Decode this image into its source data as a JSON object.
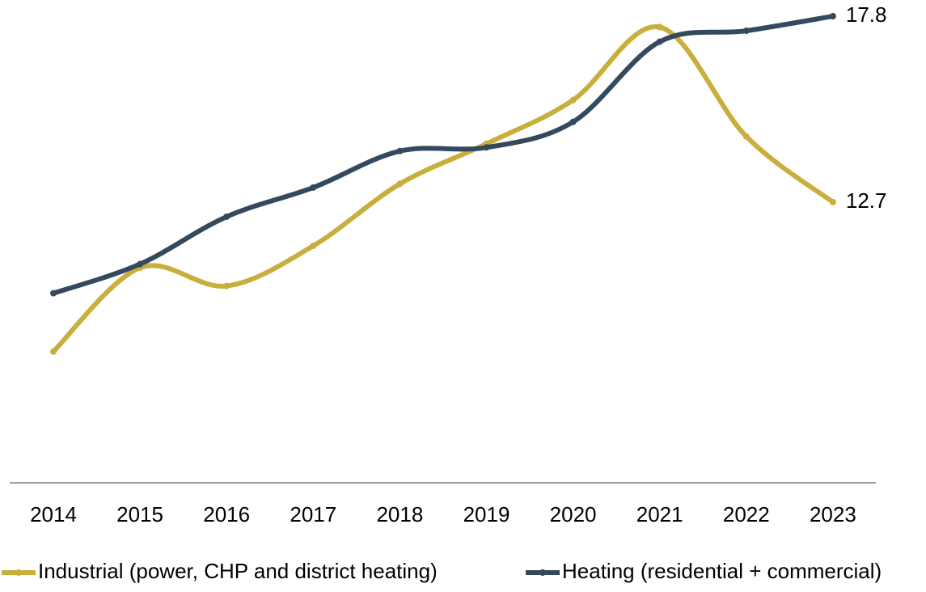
{
  "chart_data": {
    "type": "line",
    "categories": [
      "2014",
      "2015",
      "2016",
      "2017",
      "2018",
      "2019",
      "2020",
      "2021",
      "2022",
      "2023"
    ],
    "series": [
      {
        "name": "Industrial (power, CHP and district heating)",
        "color": "#c9ae3c",
        "values": [
          8.6,
          10.9,
          10.4,
          11.5,
          13.2,
          14.3,
          15.5,
          17.5,
          14.5,
          12.7
        ]
      },
      {
        "name": "Heating (residential + commercial)",
        "color": "#34495e",
        "values": [
          10.2,
          11.0,
          12.3,
          13.1,
          14.1,
          14.2,
          14.9,
          17.1,
          17.4,
          17.8
        ]
      }
    ],
    "ylim": [
      5,
      18.2
    ]
  }
}
